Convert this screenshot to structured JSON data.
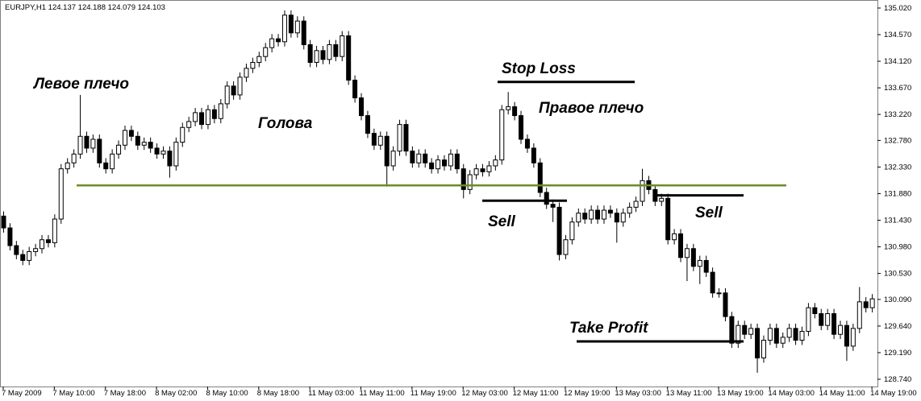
{
  "chart_data": {
    "type": "candlestick",
    "info_label": "EURJPY,H1  124.137 124.188 124.079 124.103",
    "categories": [
      "7 May 2009",
      null,
      null,
      null,
      null,
      null,
      null,
      null,
      "7 May 10:00",
      null,
      null,
      null,
      null,
      null,
      null,
      null,
      "7 May 18:00",
      null,
      null,
      null,
      null,
      null,
      null,
      null,
      "8 May 02:00",
      null,
      null,
      null,
      null,
      null,
      null,
      null,
      "8 May 10:00",
      null,
      null,
      null,
      null,
      null,
      null,
      null,
      "8 May 18:00",
      null,
      null,
      null,
      null,
      null,
      null,
      null,
      "11 May 03:00",
      null,
      null,
      null,
      null,
      null,
      null,
      null,
      "11 May 11:00",
      null,
      null,
      null,
      null,
      null,
      null,
      null,
      "11 May 19:00",
      null,
      null,
      null,
      null,
      null,
      null,
      null,
      "12 May 03:00",
      null,
      null,
      null,
      null,
      null,
      null,
      null,
      "12 May 11:00",
      null,
      null,
      null,
      null,
      null,
      null,
      null,
      "12 May 19:00",
      null,
      null,
      null,
      null,
      null,
      null,
      null,
      "13 May 03:00",
      null,
      null,
      null,
      null,
      null,
      null,
      null,
      "13 May 11:00",
      null,
      null,
      null,
      null,
      null,
      null,
      null,
      "13 May 19:00",
      null,
      null,
      null,
      null,
      null,
      null,
      null,
      "14 May 03:00",
      null,
      null,
      null,
      null,
      null,
      null,
      null,
      "14 May 11:00",
      null,
      null,
      null,
      null,
      null,
      null,
      null,
      "14 May 19:00"
    ],
    "open": [
      131.5,
      131.3,
      131.0,
      130.85,
      130.75,
      130.9,
      130.95,
      131.1,
      131.05,
      131.45,
      132.3,
      132.4,
      132.55,
      132.85,
      132.65,
      132.8,
      132.4,
      132.3,
      132.55,
      132.7,
      132.95,
      132.85,
      132.7,
      132.75,
      132.65,
      132.55,
      132.6,
      132.35,
      132.75,
      133.0,
      133.1,
      133.25,
      133.05,
      133.3,
      133.15,
      133.4,
      133.7,
      133.55,
      133.85,
      134.0,
      134.1,
      134.2,
      134.35,
      134.5,
      134.45,
      134.9,
      134.6,
      134.8,
      134.4,
      134.1,
      134.3,
      134.15,
      134.4,
      134.2,
      134.55,
      133.8,
      133.5,
      133.2,
      132.9,
      132.7,
      132.85,
      132.35,
      132.6,
      133.05,
      132.6,
      132.4,
      132.55,
      132.4,
      132.3,
      132.45,
      132.35,
      132.55,
      132.3,
      131.95,
      132.2,
      132.3,
      132.25,
      132.35,
      132.45,
      133.3,
      133.35,
      133.2,
      132.8,
      132.65,
      132.4,
      131.9,
      131.7,
      131.65,
      130.85,
      131.1,
      131.4,
      131.55,
      131.45,
      131.6,
      131.45,
      131.6,
      131.55,
      131.4,
      131.55,
      131.65,
      131.75,
      132.1,
      131.95,
      131.75,
      131.8,
      131.1,
      131.2,
      130.8,
      130.95,
      130.65,
      130.75,
      130.55,
      130.2,
      130.2,
      129.8,
      129.35,
      129.65,
      129.5,
      129.6,
      129.1,
      129.4,
      129.6,
      129.35,
      129.45,
      129.6,
      129.4,
      129.55,
      129.95,
      129.85,
      129.65,
      129.85,
      129.5,
      129.65,
      129.3,
      129.6,
      130.05,
      129.95
    ],
    "high": [
      131.58,
      131.38,
      131.08,
      130.93,
      130.98,
      131.03,
      131.18,
      131.18,
      131.53,
      132.38,
      132.48,
      132.63,
      133.55,
      132.93,
      132.88,
      132.88,
      132.48,
      132.63,
      132.78,
      133.03,
      133.03,
      132.93,
      132.83,
      132.83,
      132.73,
      132.68,
      132.68,
      132.83,
      133.08,
      133.18,
      133.33,
      133.33,
      133.38,
      133.38,
      133.48,
      133.78,
      133.78,
      133.93,
      134.08,
      134.18,
      134.28,
      134.43,
      134.58,
      134.58,
      134.98,
      134.98,
      134.88,
      134.88,
      134.48,
      134.38,
      134.38,
      134.48,
      134.48,
      134.63,
      134.63,
      133.88,
      133.58,
      133.28,
      132.98,
      132.93,
      132.93,
      132.68,
      133.13,
      133.13,
      132.68,
      132.63,
      132.63,
      132.48,
      132.53,
      132.53,
      132.63,
      132.63,
      132.38,
      132.28,
      132.38,
      132.38,
      132.43,
      132.53,
      133.38,
      133.6,
      133.43,
      133.28,
      132.88,
      132.73,
      132.48,
      131.98,
      131.78,
      131.73,
      131.18,
      131.48,
      131.63,
      131.63,
      131.68,
      131.68,
      131.68,
      131.68,
      131.63,
      131.63,
      131.73,
      131.83,
      132.3,
      132.18,
      132.03,
      131.88,
      131.88,
      131.28,
      131.28,
      131.03,
      131.03,
      130.83,
      130.83,
      130.63,
      130.28,
      130.28,
      129.88,
      129.73,
      129.73,
      129.68,
      129.68,
      129.48,
      129.68,
      129.68,
      129.53,
      129.68,
      129.68,
      129.63,
      130.03,
      130.03,
      129.93,
      129.93,
      129.93,
      129.73,
      129.73,
      129.68,
      130.3,
      130.13,
      130.18
    ],
    "low": [
      131.22,
      130.92,
      130.77,
      130.67,
      130.67,
      130.82,
      130.87,
      130.97,
      130.97,
      131.37,
      132.22,
      132.32,
      132.47,
      132.57,
      132.57,
      132.32,
      132.22,
      132.22,
      132.47,
      132.62,
      132.77,
      132.62,
      132.62,
      132.57,
      132.47,
      132.47,
      132.15,
      132.27,
      132.67,
      132.92,
      133.02,
      132.97,
      132.97,
      133.07,
      133.07,
      133.32,
      133.47,
      133.47,
      133.77,
      133.92,
      134.02,
      134.12,
      134.27,
      134.37,
      134.37,
      134.52,
      134.52,
      134.32,
      134.02,
      134.02,
      134.07,
      134.07,
      134.12,
      134.12,
      133.72,
      133.42,
      133.12,
      132.82,
      132.62,
      132.62,
      132.0,
      132.27,
      132.52,
      132.52,
      132.32,
      132.32,
      132.32,
      132.22,
      132.22,
      132.27,
      132.27,
      132.22,
      131.8,
      131.87,
      132.12,
      132.17,
      132.17,
      132.27,
      132.37,
      133.22,
      133.12,
      132.72,
      132.57,
      132.32,
      131.82,
      131.62,
      131.4,
      130.75,
      130.77,
      131.02,
      131.32,
      131.37,
      131.37,
      131.37,
      131.37,
      131.47,
      131.05,
      131.32,
      131.47,
      131.57,
      131.67,
      131.87,
      131.67,
      131.67,
      131.02,
      131.02,
      130.72,
      130.4,
      130.57,
      130.35,
      130.47,
      130.12,
      130.12,
      129.72,
      129.27,
      129.27,
      129.42,
      129.42,
      128.85,
      129.02,
      129.32,
      129.27,
      129.27,
      129.37,
      129.32,
      129.32,
      129.47,
      129.77,
      129.57,
      129.57,
      129.42,
      129.42,
      129.05,
      129.22,
      129.52,
      129.87,
      129.87
    ],
    "close": [
      131.3,
      131.0,
      130.85,
      130.75,
      130.9,
      130.95,
      131.1,
      131.05,
      131.45,
      132.3,
      132.4,
      132.55,
      132.85,
      132.65,
      132.8,
      132.4,
      132.3,
      132.55,
      132.7,
      132.95,
      132.85,
      132.7,
      132.75,
      132.65,
      132.55,
      132.6,
      132.35,
      132.75,
      133.0,
      133.1,
      133.25,
      133.05,
      133.3,
      133.15,
      133.4,
      133.7,
      133.55,
      133.85,
      134.0,
      134.1,
      134.2,
      134.35,
      134.5,
      134.45,
      134.9,
      134.6,
      134.8,
      134.4,
      134.1,
      134.3,
      134.15,
      134.4,
      134.2,
      134.55,
      133.8,
      133.5,
      133.2,
      132.9,
      132.7,
      132.85,
      132.35,
      132.6,
      133.05,
      132.6,
      132.4,
      132.55,
      132.4,
      132.3,
      132.45,
      132.35,
      132.55,
      132.3,
      131.95,
      132.2,
      132.3,
      132.25,
      132.35,
      132.45,
      133.3,
      133.35,
      133.2,
      132.8,
      132.65,
      132.4,
      131.9,
      131.7,
      131.65,
      130.85,
      131.1,
      131.4,
      131.55,
      131.45,
      131.6,
      131.45,
      131.6,
      131.55,
      131.4,
      131.55,
      131.65,
      131.75,
      132.1,
      131.95,
      131.75,
      131.8,
      131.1,
      131.2,
      130.8,
      130.95,
      130.65,
      130.75,
      130.55,
      130.2,
      130.2,
      129.8,
      129.35,
      129.65,
      129.5,
      129.6,
      129.1,
      129.4,
      129.6,
      129.35,
      129.45,
      129.6,
      129.4,
      129.55,
      129.95,
      129.85,
      129.65,
      129.85,
      129.5,
      129.65,
      129.3,
      129.6,
      130.05,
      129.95,
      130.1
    ],
    "up_color": "#ffffff",
    "down_color": "#000000",
    "ylim": [
      128.617,
      135.156
    ],
    "yticks": [
      {
        "value": 135.02,
        "label": "135.020"
      },
      {
        "value": 134.57,
        "label": "134.570"
      },
      {
        "value": 134.12,
        "label": "134.120"
      },
      {
        "value": 133.67,
        "label": "133.670"
      },
      {
        "value": 133.22,
        "label": "133.220"
      },
      {
        "value": 132.78,
        "label": "132.780"
      },
      {
        "value": 132.33,
        "label": "132.330"
      },
      {
        "value": 131.88,
        "label": "131.880"
      },
      {
        "value": 131.43,
        "label": "131.430"
      },
      {
        "value": 130.98,
        "label": "130.980"
      },
      {
        "value": 130.53,
        "label": "130.530"
      },
      {
        "value": 130.09,
        "label": "130.090"
      },
      {
        "value": 129.64,
        "label": "129.640"
      },
      {
        "value": 129.19,
        "label": "129.190"
      },
      {
        "value": 128.74,
        "label": "128.740"
      }
    ],
    "neckline": 132.02,
    "neckline_color": "#6b8e23",
    "levels": {
      "stop_loss": 133.77,
      "sell_1": 131.76,
      "sell_2": 131.85,
      "take_profit": 129.38
    },
    "annotations": [
      "Левое плечо",
      "Голова",
      "Правое плечо",
      "Stop Loss",
      "Sell",
      "Sell",
      "Take Profit"
    ]
  }
}
